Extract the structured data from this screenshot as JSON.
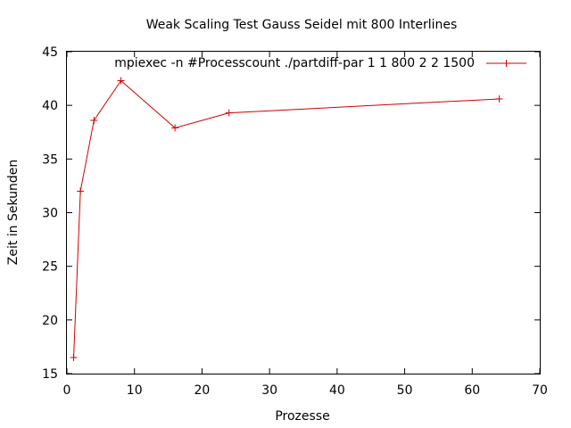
{
  "chart_data": {
    "type": "line",
    "title": "Weak Scaling Test Gauss Seidel mit 800 Interlines",
    "xlabel": "Prozesse",
    "ylabel": "Zeit in Sekunden",
    "xlim": [
      0,
      70
    ],
    "ylim": [
      15,
      45
    ],
    "x_ticks": [
      0,
      10,
      20,
      30,
      40,
      50,
      60,
      70
    ],
    "y_ticks": [
      15,
      20,
      25,
      30,
      35,
      40,
      45
    ],
    "grid": false,
    "legend_position": "top-right",
    "series": [
      {
        "name": "mpiexec -n #Processcount ./partdiff-par 1 1 800 2 2 1500",
        "color": "#d00000",
        "marker": "plus",
        "x": [
          1,
          2,
          4,
          8,
          16,
          24,
          64
        ],
        "y": [
          16.5,
          32,
          38.6,
          42.3,
          37.9,
          39.3,
          40.6
        ]
      }
    ]
  }
}
